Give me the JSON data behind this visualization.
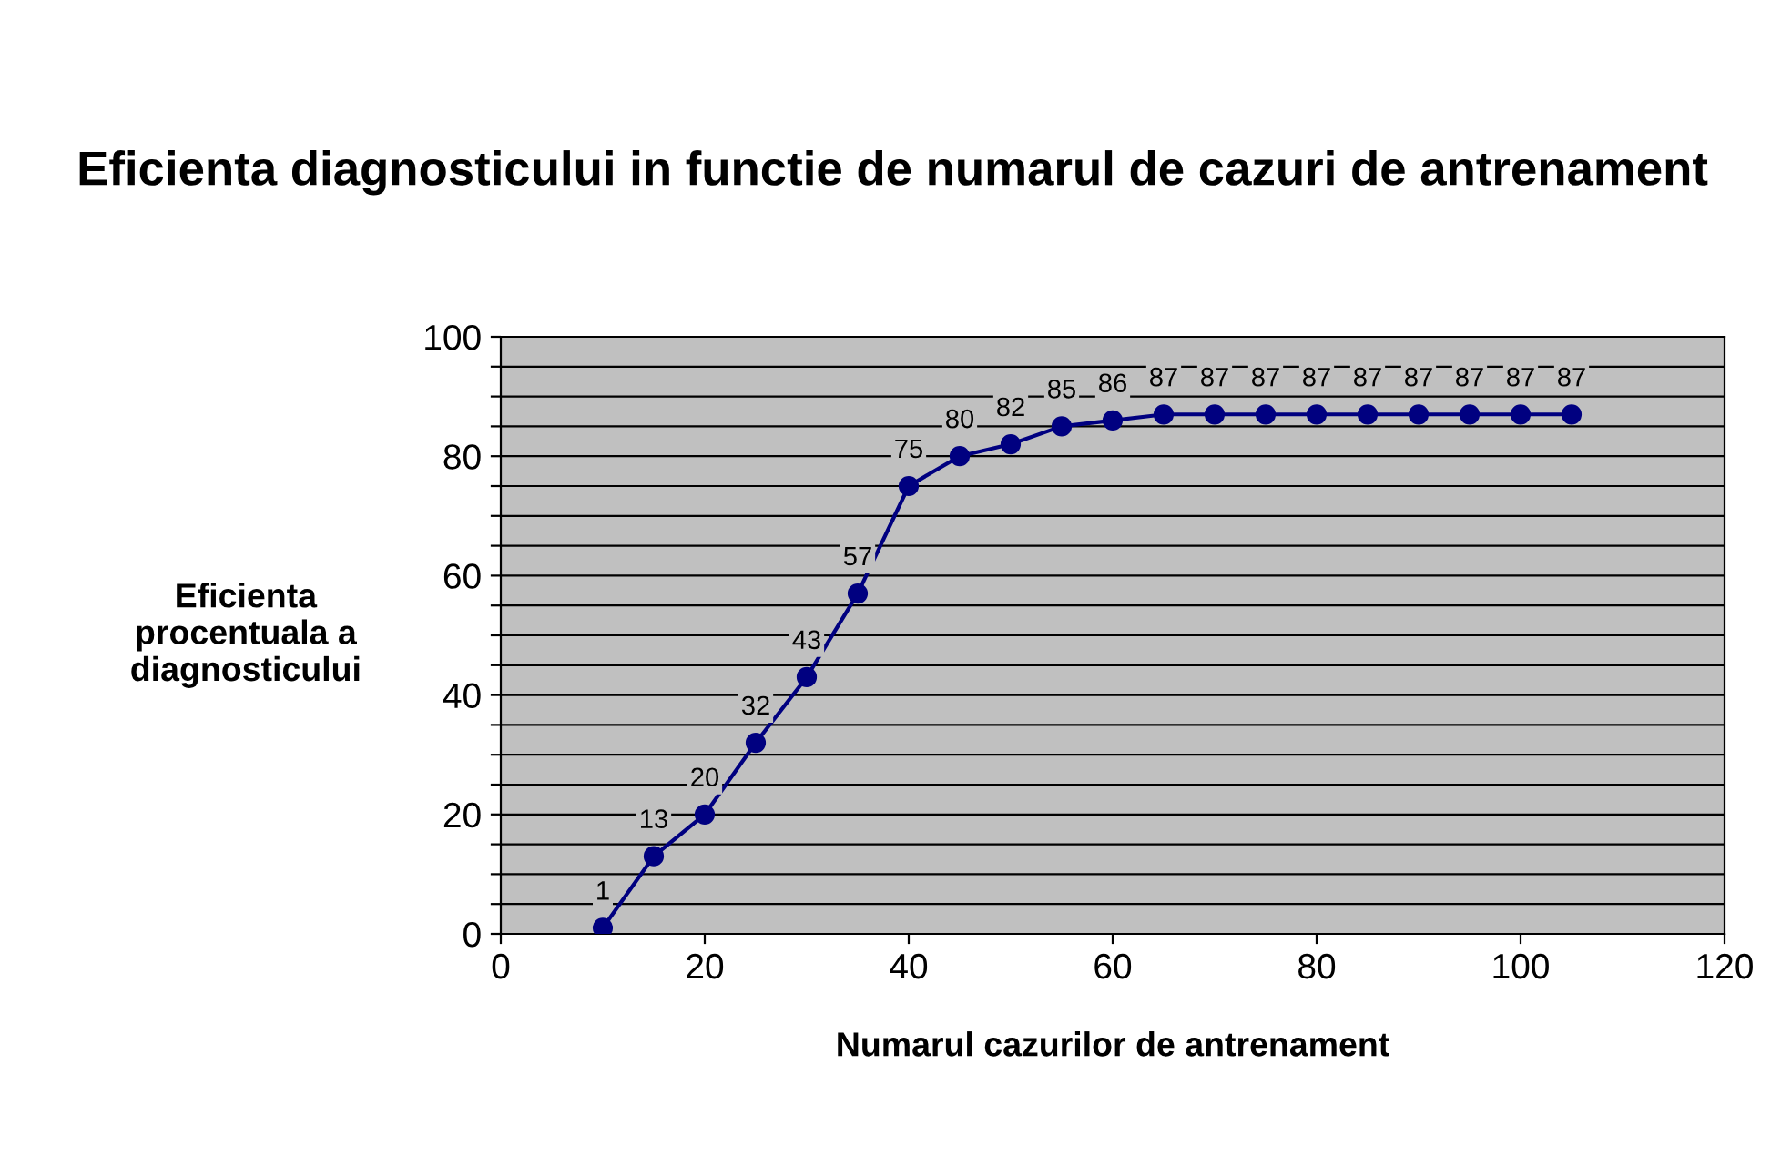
{
  "chart_data": {
    "type": "line",
    "title": "Eficienta diagnosticului in functie de numarul de cazuri de antrenament",
    "xlabel": "Numarul cazurilor de antrenament",
    "ylabel": "Eficienta\nprocentuala a\ndiagnosticului",
    "x": [
      10,
      15,
      20,
      25,
      30,
      35,
      40,
      45,
      50,
      55,
      60,
      65,
      70,
      75,
      80,
      85,
      90,
      95,
      100,
      105
    ],
    "series": [
      {
        "color": "#000080",
        "values": [
          1,
          13,
          20,
          32,
          43,
          57,
          75,
          80,
          82,
          85,
          86,
          87,
          87,
          87,
          87,
          87,
          87,
          87,
          87,
          87
        ]
      }
    ],
    "xlim": [
      0,
      120
    ],
    "xticks": [
      0,
      20,
      40,
      60,
      80,
      100,
      120
    ],
    "ylim": [
      0,
      100
    ],
    "yticks": [
      0,
      {
        "value": 5,
        "label": null
      },
      {
        "value": 10,
        "label": null
      },
      {
        "value": 15,
        "label": null
      },
      20,
      {
        "value": 25,
        "label": null
      },
      {
        "value": 30,
        "label": null
      },
      {
        "value": 35,
        "label": null
      },
      40,
      {
        "value": 45,
        "label": null
      },
      {
        "value": 50,
        "label": null
      },
      {
        "value": 55,
        "label": null
      },
      60,
      {
        "value": 65,
        "label": null
      },
      {
        "value": 70,
        "label": null
      },
      {
        "value": 75,
        "label": null
      },
      80,
      {
        "value": 85,
        "label": null
      },
      {
        "value": 90,
        "label": null
      },
      {
        "value": 95,
        "label": null
      },
      100
    ],
    "grid": "y",
    "marker": "circle",
    "line_style": "solid",
    "data_labels": true,
    "legend": false
  }
}
